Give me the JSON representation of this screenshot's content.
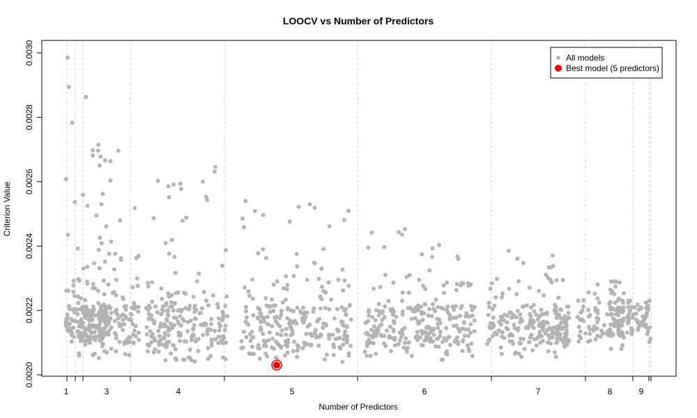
{
  "chart_data": {
    "type": "scatter",
    "title": "LOOCV vs Number of Predictors",
    "xlabel": "Number of Predictors",
    "ylabel": "Criterion Value",
    "ylim": [
      0.002,
      0.003
    ],
    "yticks": [
      "0.0020",
      "0.0022",
      "0.0024",
      "0.0026",
      "0.0028",
      "0.0030"
    ],
    "ytick_values": [
      0.002,
      0.0022,
      0.0024,
      0.0026,
      0.0028,
      0.003
    ],
    "xticks": [
      "1",
      "3",
      "4",
      "5",
      "6",
      "7",
      "8",
      "9"
    ],
    "xtick_positions": [
      1,
      3,
      4,
      5,
      6,
      7,
      8,
      9
    ],
    "group_boundaries": [
      1,
      1.5,
      2.5,
      3.5,
      4.5,
      5.5,
      6.5,
      7.5,
      8.5,
      9
    ],
    "grid": "vertical dashed at group boundaries",
    "legend": {
      "position": "top-right",
      "entries": [
        {
          "label": "All models",
          "color": "#b3b3b3"
        },
        {
          "label": "Best model (5 predictors)",
          "color": "#ee0000"
        }
      ]
    },
    "best_model": {
      "predictors": 5,
      "value": 0.00203,
      "color": "#ee0000"
    },
    "all_models_color": "#b3b3b3",
    "series_summary": [
      {
        "predictors": 1,
        "min": 0.00207,
        "max": 0.003
      },
      {
        "predictors": 2,
        "min": 0.00206,
        "max": 0.0029
      },
      {
        "predictors": 3,
        "min": 0.00205,
        "max": 0.00279
      },
      {
        "predictors": 4,
        "min": 0.00204,
        "max": 0.00265
      },
      {
        "predictors": 5,
        "min": 0.00203,
        "max": 0.00255
      },
      {
        "predictors": 6,
        "min": 0.00204,
        "max": 0.00246
      },
      {
        "predictors": 7,
        "min": 0.00205,
        "max": 0.0024
      },
      {
        "predictors": 8,
        "min": 0.00208,
        "max": 0.00229
      },
      {
        "predictors": 9,
        "min": 0.00209,
        "max": 0.00223
      }
    ]
  }
}
